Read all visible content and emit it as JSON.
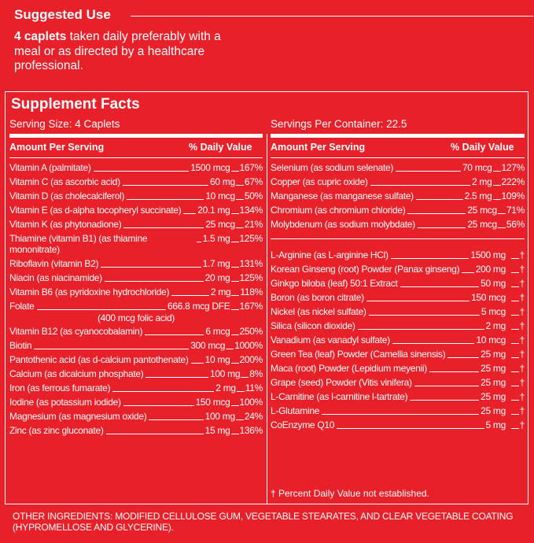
{
  "suggested_use": {
    "heading": "Suggested Use",
    "bold": "4 caplets",
    "text": " taken daily preferably with a meal or as directed by a healthcare professional."
  },
  "facts": {
    "title": "Supplement Facts",
    "serving_size": "Serving Size: 4 Caplets",
    "servings_per_container": "Servings Per Container: 22.5",
    "col_amount": "Amount Per Serving",
    "col_dv": "% Daily Value",
    "left": [
      {
        "name": "Vitamin A (palmitate)",
        "amount": "1500 mcg",
        "dv": "167%"
      },
      {
        "name": "Vitamin C (as ascorbic acid)",
        "amount": "60 mg",
        "dv": "67%"
      },
      {
        "name": "Vitamin D (as cholecalciferol)",
        "amount": "10 mcg",
        "dv": "50%"
      },
      {
        "name": "Vitamin E (as d-alpha tocopheryl succinate)",
        "amount": "20.1 mg",
        "dv": "134%"
      },
      {
        "name": "Vitamin K (as phytonadione)",
        "amount": "25 mcg",
        "dv": "21%"
      },
      {
        "name": "Thiamine (vitamin B1) (as thiamine mononitrate)",
        "amount": "1.5 mg",
        "dv": "125%"
      },
      {
        "name": "Riboflavin (vitamin B2)",
        "amount": "1.7 mg",
        "dv": "131%"
      },
      {
        "name": "Niacin (as niacinamide)",
        "amount": "20 mg",
        "dv": "125%"
      },
      {
        "name": "Vitamin B6 (as pyridoxine hydrochloride)",
        "amount": "2 mg",
        "dv": "118%"
      },
      {
        "name": "Folate",
        "amount": "666.8 mcg DFE",
        "dv": "167%",
        "sub": "(400 mcg folic acid)"
      },
      {
        "name": "Vitamin B12 (as cyanocobalamin)",
        "amount": "6 mcg",
        "dv": "250%"
      },
      {
        "name": "Biotin",
        "amount": "300 mcg",
        "dv": "1000%"
      },
      {
        "name": "Pantothenic acid (as d-calcium pantothenate)",
        "amount": "10 mg",
        "dv": "200%"
      },
      {
        "name": "Calcium (as dicalcium phosphate)",
        "amount": "100 mg",
        "dv": "8%"
      },
      {
        "name": "Iron (as ferrous fumarate)",
        "amount": "2 mg",
        "dv": "11%"
      },
      {
        "name": "Iodine (as potassium iodide)",
        "amount": "150 mcg",
        "dv": "100%"
      },
      {
        "name": "Magnesium (as magnesium oxide)",
        "amount": "100 mg",
        "dv": "24%"
      },
      {
        "name": "Zinc (as zinc gluconate)",
        "amount": "15 mg",
        "dv": "136%"
      }
    ],
    "right_minerals": [
      {
        "name": "Selenium (as sodium selenate)",
        "amount": "70 mcg",
        "dv": "127%"
      },
      {
        "name": "Copper (as cupric oxide)",
        "amount": "2 mg",
        "dv": "222%"
      },
      {
        "name": "Manganese (as manganese sulfate)",
        "amount": "2.5 mg",
        "dv": "109%"
      },
      {
        "name": "Chromium (as chromium chloride)",
        "amount": "25 mcg",
        "dv": "71%"
      },
      {
        "name": "Molybdenum (as sodium molybdate)",
        "amount": "25 mcg",
        "dv": "56%"
      }
    ],
    "right_other": [
      {
        "name": "L-Arginine (as L-arginine HCl)",
        "amount": "1500 mg",
        "dv": "†"
      },
      {
        "name": "Korean Ginseng (root) Powder (Panax ginseng)",
        "amount": "200 mg",
        "dv": "†"
      },
      {
        "name": "Ginkgo biloba (leaf) 50:1 Extract",
        "amount": "50 mg",
        "dv": "†"
      },
      {
        "name": "Boron (as boron citrate)",
        "amount": "150 mcg",
        "dv": "†"
      },
      {
        "name": "Nickel (as nickel sulfate)",
        "amount": "5 mcg",
        "dv": "†"
      },
      {
        "name": "Silica (silicon dioxide)",
        "amount": "2 mg",
        "dv": "†"
      },
      {
        "name": "Vanadium (as vanadyl sulfate)",
        "amount": "10 mcg",
        "dv": "†"
      },
      {
        "name": "Green Tea (leaf) Powder (Camellia sinensis)",
        "amount": "25 mg",
        "dv": "†"
      },
      {
        "name": "Maca (root) Powder (Lepidium meyenii)",
        "amount": "25 mg",
        "dv": "†"
      },
      {
        "name": "Grape (seed) Powder (Vitis vinifera)",
        "amount": "25 mg",
        "dv": "†"
      },
      {
        "name": "L-Carnitine (as l-carnitine l-tartrate)",
        "amount": "25 mg",
        "dv": "†"
      },
      {
        "name": "L-Glutamine",
        "amount": "25 mg",
        "dv": "†"
      },
      {
        "name": "CoEnzyme Q10",
        "amount": "5 mg",
        "dv": "†"
      }
    ],
    "footnote": "† Percent Daily Value not established."
  },
  "other_ingredients": "OTHER INGREDIENTS: MODIFIED CELLULOSE GUM, VEGETABLE STEARATES, AND CLEAR VEGETABLE COATING (HYPROMELLOSE AND GLYCERINE)."
}
